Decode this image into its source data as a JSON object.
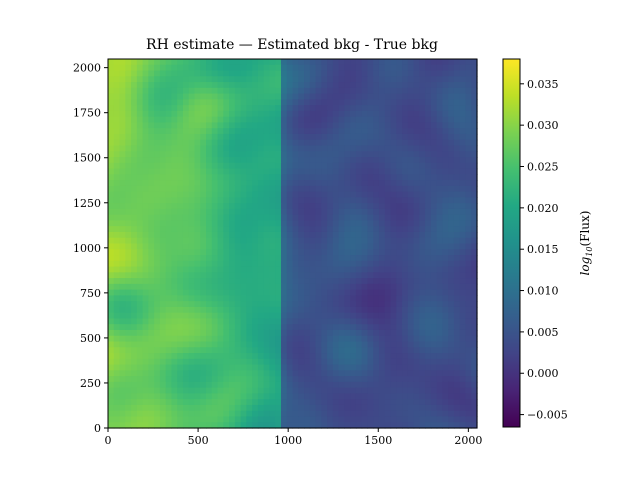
{
  "chart_data": {
    "type": "heatmap",
    "title": "RH estimate — Estimated bkg - True bkg",
    "xlim": [
      0,
      2048
    ],
    "ylim": [
      0,
      2048
    ],
    "x_ticks": [
      0,
      500,
      1000,
      1500,
      2000
    ],
    "y_ticks": [
      0,
      250,
      500,
      750,
      1000,
      1250,
      1500,
      1750,
      2000
    ],
    "colormap": "viridis",
    "colorbar": {
      "label_main": "log",
      "label_sub": "10",
      "label_rest": "(Flux)",
      "range": [
        -0.0065,
        0.038
      ],
      "ticks": [
        -0.005,
        0.0,
        0.005,
        0.01,
        0.015,
        0.02,
        0.025,
        0.03,
        0.035
      ],
      "tick_labels": [
        "−0.005",
        "0.000",
        "0.005",
        "0.010",
        "0.015",
        "0.020",
        "0.025",
        "0.030",
        "0.035"
      ]
    },
    "field_trend": {
      "left_edge_value": 0.03,
      "mid_value": 0.02,
      "right_value": 0.004,
      "transition_x": 950,
      "noise_amplitude": 0.006
    },
    "grid": false
  }
}
